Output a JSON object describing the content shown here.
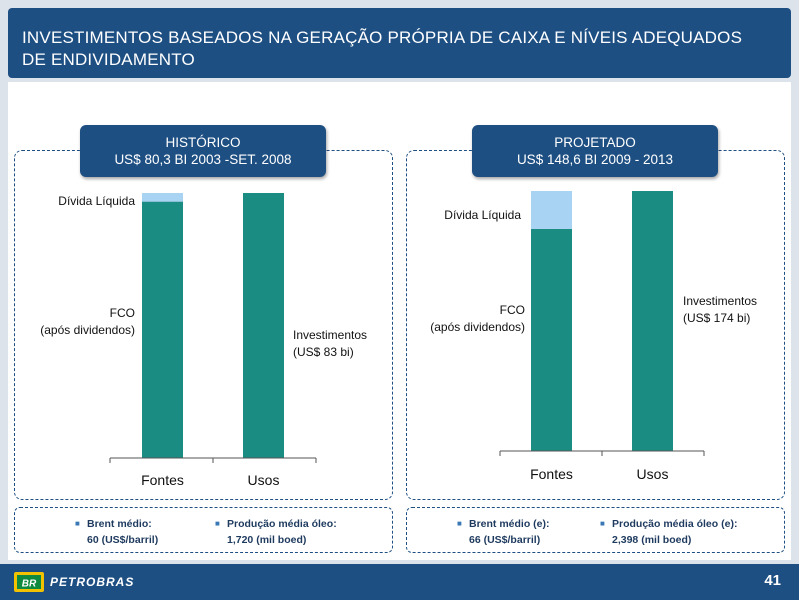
{
  "slide": {
    "title": "INVESTIMENTOS BASEADOS NA GERAÇÃO PRÓPRIA DE CAIXA E NÍVEIS ADEQUADOS DE ENDIVIDAMENTO",
    "page_number": "41",
    "logo_text": "PETROBRAS",
    "logo_mark": "BR"
  },
  "colors": {
    "navy": "#1e4f83",
    "fco": "#1a8c82",
    "debt": "#a9d3f2",
    "investment": "#1a8c82"
  },
  "left": {
    "header_line1": "HISTÓRICO",
    "header_line2": "US$ 80,3 BI 2003 -SET. 2008",
    "label_debt": "Dívida Líquida",
    "label_fco_1": "FCO",
    "label_fco_2": "(após dividendos)",
    "label_inv_1": "Investimentos",
    "label_inv_2": "(US$ 83 bi)",
    "note1_label": "Brent médio:",
    "note1_value": "60 (US$/barril)",
    "note2_label": "Produção média óleo:",
    "note2_value": "1,720 (mil boed)"
  },
  "right": {
    "header_line1": "PROJETADO",
    "header_line2": "US$ 148,6 BI 2009 - 2013",
    "label_debt": "Dívida Líquida",
    "label_fco_1": "FCO",
    "label_fco_2": "(após dividendos)",
    "label_inv_1": "Investimentos",
    "label_inv_2": "(US$ 174 bi)",
    "note1_label": "Brent médio (e):",
    "note1_value": "66 (US$/barril)",
    "note2_label": "Produção média óleo (e):",
    "note2_value": "2,398 (mil boed)"
  },
  "chart_data": [
    {
      "type": "bar",
      "stacked": true,
      "categories": [
        "Fontes",
        "Usos"
      ],
      "series": [
        {
          "name": "FCO (após dividendos)",
          "values": [
            80.3,
            0
          ]
        },
        {
          "name": "Dívida Líquida",
          "values": [
            2.7,
            0
          ]
        },
        {
          "name": "Investimentos",
          "values": [
            0,
            83
          ]
        }
      ],
      "ylim": [
        0,
        83
      ]
    },
    {
      "type": "bar",
      "stacked": true,
      "categories": [
        "Fontes",
        "Usos"
      ],
      "series": [
        {
          "name": "FCO (após dividendos)",
          "values": [
            148.6,
            0
          ]
        },
        {
          "name": "Dívida Líquida",
          "values": [
            25.4,
            0
          ]
        },
        {
          "name": "Investimentos",
          "values": [
            0,
            174
          ]
        }
      ],
      "ylim": [
        0,
        174
      ]
    }
  ]
}
